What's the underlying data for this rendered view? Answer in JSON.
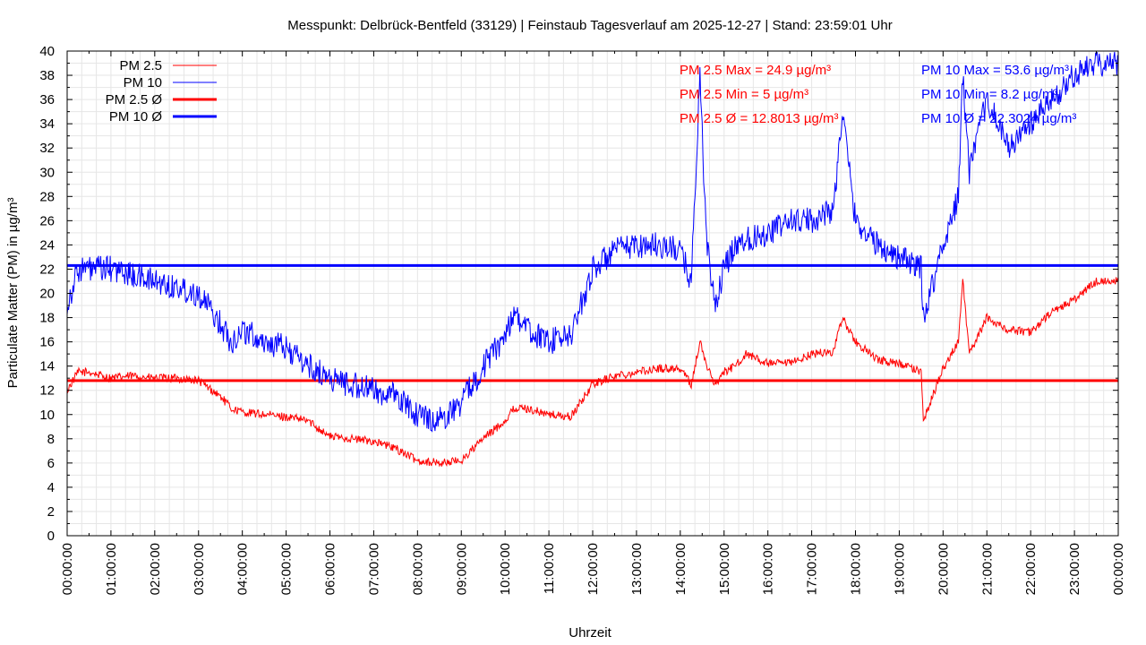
{
  "chart_data": {
    "type": "line",
    "title": "Messpunkt: Delbrück-Bentfeld (33129) | Feinstaub Tagesverlauf am 2025-12-27 | Stand: 23:59:01 Uhr",
    "xlabel": "Uhrzeit",
    "ylabel": "Particulate Matter (PM) in µg/m³",
    "xlim": [
      "00:00:00",
      "24:00:00"
    ],
    "ylim": [
      0,
      40
    ],
    "grid": true,
    "legend_position": "top-left",
    "x_ticks": [
      "00:00:00",
      "01:00:00",
      "02:00:00",
      "03:00:00",
      "04:00:00",
      "05:00:00",
      "06:00:00",
      "07:00:00",
      "08:00:00",
      "09:00:00",
      "10:00:00",
      "11:00:00",
      "12:00:00",
      "13:00:00",
      "14:00:00",
      "15:00:00",
      "16:00:00",
      "17:00:00",
      "18:00:00",
      "19:00:00",
      "20:00:00",
      "21:00:00",
      "22:00:00",
      "23:00:00",
      "00:00:00"
    ],
    "y_ticks": [
      0,
      2,
      4,
      6,
      8,
      10,
      12,
      14,
      16,
      18,
      20,
      22,
      24,
      26,
      28,
      30,
      32,
      34,
      36,
      38,
      40
    ],
    "x_hours": [
      0,
      0.25,
      0.5,
      1,
      1.5,
      2,
      2.5,
      3,
      3.5,
      3.75,
      4,
      4.5,
      5,
      5.5,
      6,
      6.5,
      7,
      7.5,
      8,
      8.5,
      9,
      9.5,
      10,
      10.2,
      10.5,
      11,
      11.5,
      12,
      12.5,
      13,
      13.5,
      14,
      14.25,
      14.45,
      14.6,
      14.8,
      15,
      15.25,
      15.5,
      16,
      16.5,
      17,
      17.5,
      17.7,
      18,
      18.5,
      19,
      19.5,
      19.55,
      20,
      20.35,
      20.45,
      20.6,
      21,
      21.5,
      22,
      22.5,
      23,
      23.5,
      24
    ],
    "series": [
      {
        "name": "PM 2.5",
        "color": "#ff0000",
        "style": "thin",
        "values": [
          12,
          13.5,
          13.5,
          13,
          13.2,
          13,
          13,
          12.8,
          11.5,
          10.5,
          10.2,
          10,
          9.8,
          9.5,
          8.2,
          8,
          7.8,
          7.2,
          6.2,
          6,
          6.2,
          8,
          9.5,
          10.5,
          10.5,
          10,
          9.8,
          12.5,
          13.2,
          13.5,
          13.8,
          13.8,
          12.5,
          16,
          14,
          12.5,
          13.5,
          14,
          15,
          14.2,
          14.2,
          15,
          15.2,
          18,
          16,
          14.5,
          14.2,
          13.5,
          9.5,
          13.8,
          16,
          21,
          15,
          18,
          17,
          16.8,
          18.5,
          19.5,
          21,
          21
        ]
      },
      {
        "name": "PM 10",
        "color": "#0000ff",
        "style": "thin",
        "values": [
          19,
          22,
          22,
          22,
          21.5,
          21,
          20.5,
          20,
          17.5,
          16,
          17,
          16,
          15.5,
          14,
          13,
          12.5,
          12,
          11.5,
          10,
          9.5,
          11,
          14,
          16.5,
          18.5,
          17,
          16,
          16.5,
          22,
          23.5,
          24,
          24,
          23.5,
          21,
          38,
          24,
          19,
          22,
          24,
          24.5,
          25,
          26,
          26,
          27,
          35,
          26,
          24,
          23,
          22,
          18,
          24,
          28,
          38,
          30,
          36,
          32,
          34,
          36,
          38,
          39,
          39
        ]
      },
      {
        "name": "PM 2.5 Ø",
        "color": "#ff0000",
        "style": "thick",
        "average": 12.8013
      },
      {
        "name": "PM 10 Ø",
        "color": "#0000ff",
        "style": "thick",
        "average": 22.3024
      }
    ],
    "annotations": [
      {
        "text": "PM 2.5 Max = 24.9 µg/m³",
        "color": "#ff0000"
      },
      {
        "text": "PM 2.5 Min = 5 µg/m³",
        "color": "#ff0000"
      },
      {
        "text": "PM 2.5 Ø = 12.8013 µg/m³",
        "color": "#ff0000"
      },
      {
        "text": "PM 10 Max = 53.6 µg/m³",
        "color": "#0000ff"
      },
      {
        "text": "PM 10 Min = 8.2 µg/m³",
        "color": "#0000ff"
      },
      {
        "text": "PM 10 Ø = 22.3024 µg/m³",
        "color": "#0000ff"
      }
    ]
  }
}
